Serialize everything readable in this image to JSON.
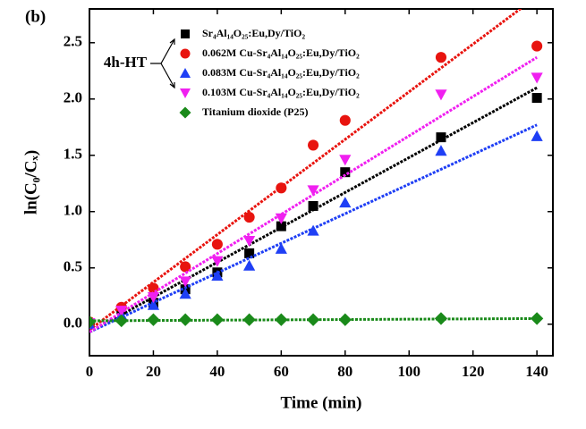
{
  "chart_data": {
    "type": "scatter",
    "panel_label": "(b)",
    "annotation": "4h-HT",
    "xlabel": "Time (min)",
    "ylabel": "ln(C₀/Cₓ)",
    "x": [
      0,
      10,
      20,
      30,
      40,
      50,
      60,
      70,
      80,
      110,
      140
    ],
    "series": [
      {
        "name": "Sr₄Al₁₄O₂₅:Eu,Dy/TiO₂",
        "color": "#000000",
        "marker": "square",
        "values": [
          0,
          0.13,
          0.19,
          0.31,
          0.46,
          0.63,
          0.87,
          1.05,
          1.35,
          1.66,
          2.01
        ],
        "fit": {
          "x": [
            0,
            140
          ],
          "values": [
            -0.07,
            2.1
          ]
        }
      },
      {
        "name": "0.062M Cu-Sr₄Al₁₄O₂₅:Eu,Dy/TiO₂",
        "color": "#e8140f",
        "marker": "circle",
        "values": [
          0.02,
          0.15,
          0.32,
          0.51,
          0.71,
          0.95,
          1.21,
          1.59,
          1.81,
          2.37,
          2.47
        ],
        "fit": {
          "x": [
            0,
            140
          ],
          "values": [
            -0.05,
            2.91
          ]
        }
      },
      {
        "name": "0.083M Cu-Sr₄Al₁₄O₂₅:Eu,Dy/TiO₂",
        "color": "#1f3ff5",
        "marker": "triangle-up",
        "values": [
          0,
          0.08,
          0.17,
          0.27,
          0.43,
          0.52,
          0.67,
          0.83,
          1.08,
          1.54,
          1.67
        ],
        "fit": {
          "x": [
            0,
            140
          ],
          "values": [
            -0.07,
            1.77
          ]
        }
      },
      {
        "name": "0.103M Cu-Sr₄Al₁₄O₂₅:Eu,Dy/TiO₂",
        "color": "#f020f0",
        "marker": "triangle-down",
        "values": [
          0.01,
          0.12,
          0.24,
          0.38,
          0.56,
          0.74,
          0.94,
          1.19,
          1.46,
          2.04,
          2.19
        ],
        "fit": {
          "x": [
            0,
            140
          ],
          "values": [
            -0.07,
            2.37
          ]
        }
      },
      {
        "name": "Titanium dioxide (P25)",
        "color": "#1a8a1a",
        "marker": "diamond",
        "values": [
          0.02,
          0.03,
          0.04,
          0.04,
          0.04,
          0.04,
          0.04,
          0.04,
          0.04,
          0.05,
          0.05
        ],
        "fit": {
          "x": [
            0,
            140
          ],
          "values": [
            0.03,
            0.05
          ]
        }
      }
    ],
    "xlim": [
      0,
      145
    ],
    "ylim": [
      -0.28,
      2.8
    ],
    "xticks": [
      0,
      20,
      40,
      60,
      80,
      100,
      120,
      140
    ],
    "yticks": [
      {
        "value": 0,
        "label": "0.0"
      },
      {
        "value": 0.5,
        "label": "0.5"
      },
      {
        "value": 1,
        "label": "1.0"
      },
      {
        "value": 1.5,
        "label": "1.5"
      },
      {
        "value": 2,
        "label": "2.0"
      },
      {
        "value": 2.5,
        "label": "2.5"
      }
    ],
    "legend": "upper left"
  }
}
